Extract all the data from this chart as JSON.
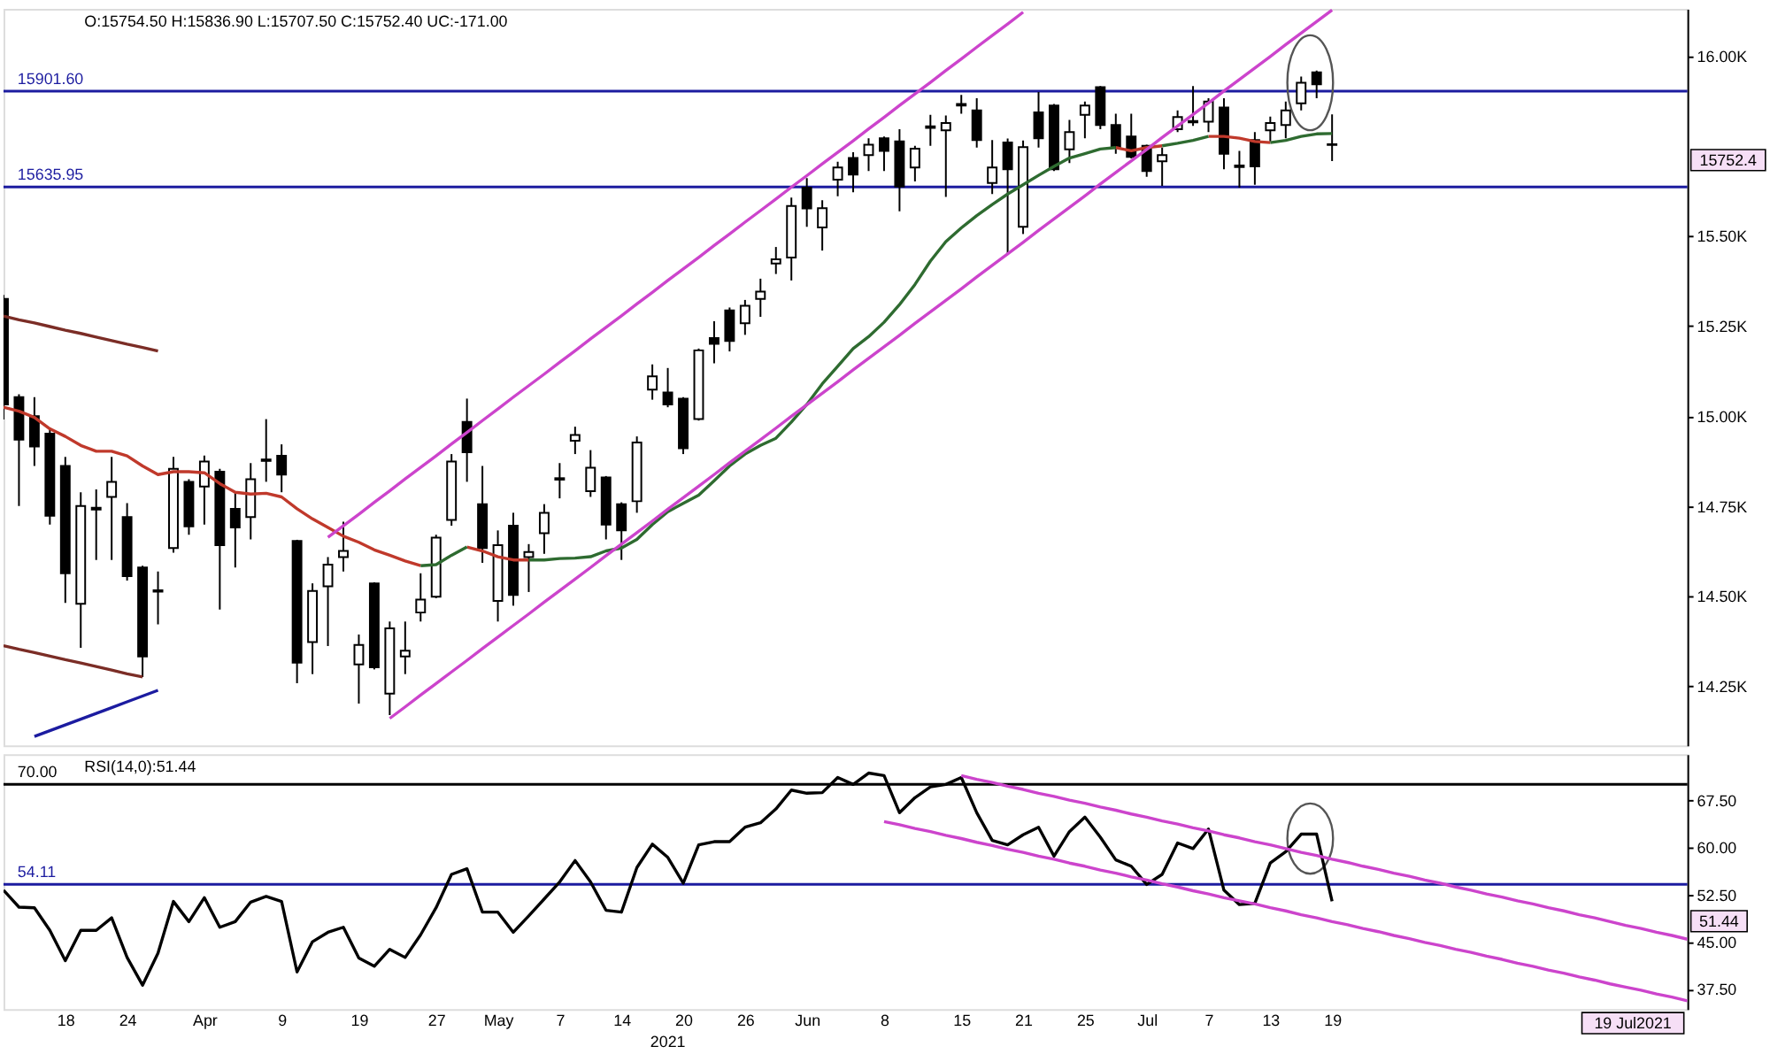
{
  "chart_data": [
    {
      "type": "candlestick",
      "title": "O:15754.50 H:15836.90 L:15707.50 C:15752.40 UC:-171.00",
      "categories": [
        null,
        null,
        null,
        null,
        "18",
        null,
        null,
        null,
        "24",
        null,
        null,
        null,
        null,
        "Apr",
        null,
        null,
        null,
        null,
        "9",
        null,
        null,
        null,
        null,
        "19",
        null,
        null,
        null,
        null,
        "27",
        null,
        null,
        null,
        "May",
        null,
        null,
        null,
        "7",
        null,
        null,
        null,
        "14",
        null,
        null,
        null,
        "20",
        null,
        null,
        null,
        "26",
        null,
        null,
        null,
        "Jun",
        null,
        null,
        null,
        null,
        "8",
        null,
        null,
        null,
        null,
        "15",
        null,
        null,
        null,
        "21",
        null,
        null,
        null,
        "25",
        null,
        null,
        null,
        "Jul",
        null,
        null,
        null,
        "7",
        null,
        null,
        null,
        "13",
        null,
        null,
        null,
        "19",
        null,
        null,
        null,
        null,
        null,
        null,
        null,
        null,
        null,
        null,
        null,
        null,
        null,
        null,
        null,
        null,
        null,
        null,
        null,
        null,
        null,
        null,
        null
      ],
      "ohlc": [
        [
          15325,
          15336,
          14990,
          15032
        ],
        [
          15052,
          15060,
          14750,
          14934
        ],
        [
          14999,
          15052,
          14861,
          14915
        ],
        [
          14951,
          14967,
          14698,
          14723
        ],
        [
          14861,
          14886,
          14481,
          14563
        ],
        [
          14478,
          14788,
          14356,
          14750
        ],
        [
          14740,
          14796,
          14600,
          14745
        ],
        [
          14775,
          14886,
          14600,
          14817
        ],
        [
          14719,
          14758,
          14543,
          14555
        ],
        [
          14579,
          14584,
          14275,
          14332
        ],
        [
          14516,
          14568,
          14421,
          14512
        ],
        [
          14633,
          14886,
          14620,
          14853
        ],
        [
          14817,
          14824,
          14670,
          14693
        ],
        [
          14804,
          14890,
          14698,
          14873
        ],
        [
          14845,
          14853,
          14462,
          14641
        ],
        [
          14742,
          14788,
          14579,
          14690
        ],
        [
          14719,
          14869,
          14657,
          14824
        ],
        [
          14875,
          14991,
          14817,
          14879
        ],
        [
          14889,
          14921,
          14788,
          14837
        ],
        [
          14653,
          14656,
          14258,
          14315
        ],
        [
          14372,
          14535,
          14283,
          14514
        ],
        [
          14527,
          14608,
          14361,
          14587
        ],
        [
          14608,
          14706,
          14568,
          14625
        ],
        [
          14310,
          14393,
          14201,
          14364
        ],
        [
          14535,
          14538,
          14296,
          14302
        ],
        [
          14229,
          14429,
          14169,
          14410
        ],
        [
          14332,
          14429,
          14283,
          14348
        ],
        [
          14454,
          14563,
          14429,
          14490
        ],
        [
          14498,
          14670,
          14494,
          14662
        ],
        [
          14711,
          14894,
          14695,
          14873
        ],
        [
          14983,
          15048,
          14817,
          14899
        ],
        [
          14755,
          14861,
          14592,
          14633
        ],
        [
          14486,
          14682,
          14429,
          14641
        ],
        [
          14695,
          14731,
          14473,
          14503
        ],
        [
          14608,
          14644,
          14511,
          14622
        ],
        [
          14674,
          14755,
          14617,
          14731
        ],
        [
          14823,
          14869,
          14771,
          14827
        ],
        [
          14931,
          14970,
          14894,
          14947
        ],
        [
          14791,
          14905,
          14775,
          14856
        ],
        [
          14829,
          14833,
          14657,
          14698
        ],
        [
          14755,
          14760,
          14600,
          14682
        ],
        [
          14763,
          14943,
          14731,
          14926
        ],
        [
          15073,
          15143,
          15045,
          15110
        ],
        [
          15065,
          15133,
          15024,
          15032
        ],
        [
          15048,
          15052,
          14894,
          14910
        ],
        [
          14991,
          15187,
          14987,
          15182
        ],
        [
          15216,
          15263,
          15146,
          15200
        ],
        [
          15293,
          15301,
          15179,
          15208
        ],
        [
          15257,
          15322,
          15225,
          15306
        ],
        [
          15325,
          15381,
          15275,
          15345
        ],
        [
          15423,
          15469,
          15394,
          15435
        ],
        [
          15440,
          15606,
          15376,
          15583
        ],
        [
          15634,
          15660,
          15525,
          15576
        ],
        [
          15523,
          15599,
          15459,
          15577
        ],
        [
          15656,
          15706,
          15610,
          15690
        ],
        [
          15716,
          15732,
          15621,
          15670
        ],
        [
          15724,
          15771,
          15680,
          15753
        ],
        [
          15771,
          15776,
          15680,
          15736
        ],
        [
          15762,
          15796,
          15568,
          15637
        ],
        [
          15690,
          15750,
          15651,
          15742
        ],
        [
          15800,
          15836,
          15750,
          15804
        ],
        [
          15793,
          15834,
          15608,
          15813
        ],
        [
          15862,
          15891,
          15839,
          15866
        ],
        [
          15848,
          15882,
          15745,
          15766
        ],
        [
          15647,
          15766,
          15616,
          15690
        ],
        [
          15759,
          15770,
          15451,
          15685
        ],
        [
          15525,
          15765,
          15505,
          15746
        ],
        [
          15843,
          15899,
          15745,
          15771
        ],
        [
          15862,
          15866,
          15680,
          15685
        ],
        [
          15740,
          15822,
          15702,
          15788
        ],
        [
          15836,
          15873,
          15771,
          15862
        ],
        [
          15913,
          15916,
          15796,
          15808
        ],
        [
          15808,
          15839,
          15728,
          15745
        ],
        [
          15776,
          15839,
          15715,
          15719
        ],
        [
          15750,
          15753,
          15664,
          15680
        ],
        [
          15707,
          15745,
          15639,
          15724
        ],
        [
          15796,
          15848,
          15788,
          15830
        ],
        [
          15815,
          15916,
          15805,
          15819
        ],
        [
          15817,
          15882,
          15788,
          15873
        ],
        [
          15856,
          15882,
          15685,
          15728
        ],
        [
          15691,
          15736,
          15634,
          15695
        ],
        [
          15766,
          15788,
          15642,
          15693
        ],
        [
          15793,
          15831,
          15762,
          15813
        ],
        [
          15808,
          15873,
          15771,
          15848
        ],
        [
          15868,
          15942,
          15848,
          15925
        ],
        [
          15954,
          15959,
          15882,
          15921
        ],
        [
          15754.5,
          15836.9,
          15707.5,
          15752.4
        ],
        null,
        null,
        null,
        null,
        null,
        null,
        null,
        null,
        null,
        null,
        null,
        null,
        null,
        null,
        null,
        null,
        null,
        null,
        null,
        null,
        null,
        null,
        null
      ],
      "color": "#000000",
      "series": [
        {
          "type": "line",
          "color": "#c0392b",
          "values": [
            15024,
            15013,
            14996,
            14964,
            14943,
            14918,
            14902,
            14902,
            14889,
            14861,
            14837,
            14845,
            14845,
            14842,
            14812,
            14788,
            14783,
            14785,
            14775,
            14742,
            14714,
            14690,
            14666,
            14649,
            14628,
            14613,
            14597,
            14584,
            null,
            null,
            14636,
            14625,
            14609,
            14600,
            14600,
            null,
            null,
            null,
            null,
            null,
            null,
            null,
            null,
            null,
            null,
            null,
            null,
            null,
            null,
            null,
            null,
            null,
            null,
            null,
            null,
            null,
            null,
            null,
            null,
            null,
            null,
            null,
            null,
            null,
            null,
            null,
            null,
            null,
            null,
            null,
            null,
            null,
            15745,
            15736,
            15745,
            15750,
            null,
            null,
            15776,
            15776,
            15771,
            15762,
            15759,
            null,
            null,
            null,
            null,
            null,
            null,
            null,
            null,
            null,
            null,
            null,
            null,
            null,
            null,
            null,
            null,
            null,
            null,
            null,
            null,
            null,
            null,
            null,
            null,
            null,
            null,
            null
          ]
        },
        {
          "type": "line",
          "color": "#2e6b30",
          "values": [
            null,
            null,
            null,
            null,
            null,
            null,
            null,
            null,
            null,
            null,
            null,
            null,
            null,
            null,
            null,
            null,
            null,
            null,
            null,
            null,
            null,
            null,
            null,
            null,
            null,
            null,
            null,
            14584,
            14587,
            14613,
            14636,
            null,
            null,
            null,
            14600,
            14600,
            14604,
            14605,
            14609,
            14625,
            14633,
            14657,
            14698,
            14734,
            14757,
            14780,
            14820,
            14861,
            14894,
            14918,
            14938,
            14983,
            15032,
            15089,
            15138,
            15187,
            15220,
            15260,
            15309,
            15365,
            15430,
            15484,
            15522,
            15556,
            15587,
            15616,
            15642,
            15668,
            15693,
            15716,
            15728,
            15741,
            15745,
            null,
            null,
            15750,
            15757,
            15765,
            15776,
            null,
            null,
            null,
            15759,
            15765,
            15776,
            15783,
            15784,
            null,
            null,
            null,
            null,
            null,
            null,
            null,
            null,
            null,
            null,
            null,
            null,
            null,
            null,
            null,
            null,
            null,
            null,
            null,
            null,
            null,
            null,
            null
          ]
        },
        {
          "type": "line",
          "color": "#cc44cc",
          "values": [
            null,
            null,
            null,
            null,
            null,
            null,
            null,
            null,
            null,
            null,
            null,
            null,
            null,
            null,
            null,
            null,
            null,
            null,
            null,
            null,
            null,
            14663,
            14695,
            14727,
            14760,
            14792,
            14825,
            14857,
            14889,
            14922,
            14954,
            14987,
            15019,
            15052,
            15084,
            15116,
            15149,
            15181,
            15214,
            15246,
            15278,
            15311,
            15343,
            15376,
            15408,
            15440,
            15473,
            15505,
            15538,
            15570,
            15602,
            15635,
            15667,
            15700,
            15732,
            15764,
            15797,
            15829,
            15862,
            15894,
            15926,
            15959,
            15991,
            16024,
            16056,
            16088,
            16121,
            null,
            null,
            null,
            null,
            null,
            null,
            null,
            null,
            null,
            null,
            null,
            null,
            null,
            null,
            null,
            null,
            null,
            null,
            null,
            null,
            null,
            null,
            null,
            null,
            null,
            null,
            null,
            null,
            null,
            null,
            null,
            null,
            null,
            null,
            null,
            null,
            null,
            null,
            null,
            null,
            null,
            null,
            null
          ]
        },
        {
          "type": "line",
          "color": "#cc44cc",
          "values": [
            null,
            null,
            null,
            null,
            null,
            null,
            null,
            null,
            null,
            null,
            null,
            null,
            null,
            null,
            null,
            null,
            null,
            null,
            null,
            null,
            null,
            null,
            null,
            null,
            null,
            14160,
            14192,
            14225,
            14257,
            14289,
            14321,
            14354,
            14386,
            14418,
            14450,
            14483,
            14515,
            14547,
            14579,
            14612,
            14644,
            14676,
            14708,
            14741,
            14773,
            14805,
            14837,
            14870,
            14902,
            14934,
            14966,
            14999,
            15031,
            15063,
            15095,
            15128,
            15160,
            15192,
            15224,
            15257,
            15289,
            15321,
            15353,
            15386,
            15418,
            15450,
            15482,
            15515,
            15547,
            15579,
            15611,
            15644,
            15676,
            15708,
            15740,
            15773,
            15805,
            15837,
            15869,
            15902,
            15934,
            15966,
            15998,
            16031,
            16063,
            16095,
            16127,
            null,
            null,
            null,
            null,
            null,
            null,
            null,
            null,
            null,
            null,
            null,
            null,
            null,
            null,
            null,
            null,
            null,
            null,
            null,
            null,
            null,
            null,
            null
          ]
        },
        {
          "type": "line",
          "color": "#7b2d26",
          "values": [
            15277,
            15267,
            15258,
            15248,
            15238,
            15229,
            15219,
            15209,
            15199,
            15190,
            15180,
            null,
            null,
            null,
            null,
            null,
            null,
            null,
            null,
            null,
            null,
            null,
            null,
            null,
            null,
            null,
            null,
            null,
            null,
            null,
            null,
            null,
            null,
            null,
            null,
            null,
            null,
            null,
            null,
            null,
            null,
            null,
            null,
            null,
            null,
            null,
            null,
            null,
            null,
            null,
            null,
            null,
            null,
            null,
            null,
            null,
            null,
            null,
            null,
            null,
            null,
            null,
            null,
            null,
            null,
            null,
            null,
            null,
            null,
            null,
            null,
            null,
            null,
            null,
            null,
            null,
            null,
            null,
            null,
            null,
            null,
            null,
            null,
            null,
            null,
            null,
            null,
            null,
            null,
            null,
            null,
            null,
            null,
            null,
            null,
            null,
            null,
            null,
            null,
            null,
            null,
            null,
            null,
            null,
            null,
            null,
            null,
            null,
            null,
            null
          ]
        },
        {
          "type": "line",
          "color": "#7b2d26",
          "values": [
            14362,
            14352,
            14343,
            14333,
            14323,
            14314,
            14304,
            14294,
            14284,
            14275,
            null,
            null,
            null,
            null,
            null,
            null,
            null,
            null,
            null,
            null,
            null,
            null,
            null,
            null,
            null,
            null,
            null,
            null,
            null,
            null,
            null,
            null,
            null,
            null,
            null,
            null,
            null,
            null,
            null,
            null,
            null,
            null,
            null,
            null,
            null,
            null,
            null,
            null,
            null,
            null,
            null,
            null,
            null,
            null,
            null,
            null,
            null,
            null,
            null,
            null,
            null,
            null,
            null,
            null,
            null,
            null,
            null,
            null,
            null,
            null,
            null,
            null,
            null,
            null,
            null,
            null,
            null,
            null,
            null,
            null,
            null,
            null,
            null,
            null,
            null,
            null,
            null,
            null,
            null,
            null,
            null,
            null,
            null,
            null,
            null,
            null,
            null,
            null,
            null,
            null,
            null,
            null,
            null,
            null,
            null,
            null,
            null,
            null,
            null,
            null
          ]
        },
        {
          "type": "line",
          "color": "#1c1ca0",
          "values": [
            null,
            null,
            14110,
            14126,
            14142,
            14158,
            14174,
            14190,
            14206,
            14222,
            14238,
            null,
            null,
            null,
            null,
            null,
            null,
            null,
            null,
            null,
            null,
            null,
            null,
            null,
            null,
            null,
            null,
            null,
            null,
            null,
            null,
            null,
            null,
            null,
            null,
            null,
            null,
            null,
            null,
            null,
            null,
            null,
            null,
            null,
            null,
            null,
            null,
            null,
            null,
            null,
            null,
            null,
            null,
            null,
            null,
            null,
            null,
            null,
            null,
            null,
            null,
            null,
            null,
            null,
            null,
            null,
            null,
            null,
            null,
            null,
            null,
            null,
            null,
            null,
            null,
            null,
            null,
            null,
            null,
            null,
            null,
            null,
            null,
            null,
            null,
            null,
            null,
            null,
            null,
            null,
            null,
            null,
            null,
            null,
            null,
            null,
            null,
            null,
            null,
            null,
            null,
            null,
            null,
            null,
            null,
            null,
            null,
            null,
            null,
            null
          ]
        }
      ],
      "ylim": [
        14085,
        16130
      ],
      "yticks": [
        {
          "value": 14250,
          "label": "14.25K"
        },
        {
          "value": 14500,
          "label": "14.50K"
        },
        {
          "value": 14750,
          "label": "14.75K"
        },
        {
          "value": 15000,
          "label": "15.00K"
        },
        {
          "value": 15250,
          "label": "15.25K"
        },
        {
          "value": 15500,
          "label": "15.50K"
        },
        {
          "value": 16000,
          "label": "16.00K"
        }
      ],
      "ref_lines": [
        {
          "axis": "y",
          "value": 15901.6,
          "label": "15901.60",
          "color": "#1c1ca0"
        },
        {
          "axis": "y",
          "value": 15635.95,
          "label": "15635.95",
          "color": "#1c1ca0"
        }
      ],
      "annotations": [
        "15752.4"
      ],
      "tick_labels": "y"
    },
    {
      "type": "line",
      "title": "RSI(14,0):51.44",
      "categories": [
        null,
        null,
        null,
        null,
        "18",
        null,
        null,
        null,
        "24",
        null,
        null,
        null,
        null,
        "Apr",
        null,
        null,
        null,
        null,
        "9",
        null,
        null,
        null,
        null,
        "19",
        null,
        null,
        null,
        null,
        "27",
        null,
        null,
        null,
        "May",
        null,
        null,
        null,
        "7",
        null,
        null,
        null,
        "14",
        null,
        null,
        null,
        "20",
        null,
        null,
        null,
        "26",
        null,
        null,
        null,
        "Jun",
        null,
        null,
        null,
        null,
        "8",
        null,
        null,
        null,
        null,
        "15",
        null,
        null,
        null,
        "21",
        null,
        null,
        null,
        "25",
        null,
        null,
        null,
        "Jul",
        null,
        null,
        null,
        "7",
        null,
        null,
        null,
        "13",
        null,
        null,
        null,
        "19",
        null,
        null,
        null,
        null,
        null,
        null,
        null,
        null,
        null,
        null,
        null,
        null,
        null,
        null,
        null,
        null,
        null,
        null,
        null,
        null,
        null,
        null,
        null
      ],
      "series": [
        {
          "color": "#000000",
          "values": [
            53.2,
            50.5,
            50.4,
            46.8,
            42.0,
            46.8,
            46.8,
            48.8,
            42.5,
            38.1,
            43.2,
            51.4,
            48.2,
            52.0,
            47.3,
            48.2,
            51.3,
            52.2,
            51.4,
            40.2,
            45.0,
            46.5,
            47.3,
            42.4,
            41.1,
            43.8,
            42.5,
            46.1,
            50.4,
            55.7,
            56.6,
            49.7,
            49.7,
            46.5,
            49.1,
            51.8,
            54.5,
            57.9,
            54.5,
            50.0,
            49.7,
            56.8,
            60.5,
            58.4,
            54.3,
            60.4,
            60.9,
            60.9,
            63.2,
            63.9,
            66.1,
            69.1,
            68.6,
            68.7,
            71.1,
            70.0,
            71.8,
            71.4,
            65.5,
            67.9,
            69.6,
            70.0,
            71.1,
            65.5,
            61.1,
            60.4,
            62.0,
            63.2,
            58.6,
            62.5,
            64.8,
            61.6,
            58.0,
            57.0,
            54.1,
            55.7,
            60.7,
            59.8,
            62.9,
            53.2,
            50.9,
            51.1,
            57.5,
            59.3,
            62.1,
            62.1,
            51.44,
            null,
            null,
            null,
            null,
            null,
            null,
            null,
            null,
            null,
            null,
            null,
            null,
            null,
            null,
            null,
            null,
            null,
            null,
            null,
            null,
            null,
            null,
            null
          ]
        },
        {
          "color": "#cc44cc",
          "values": [
            null,
            null,
            null,
            null,
            null,
            null,
            null,
            null,
            null,
            null,
            null,
            null,
            null,
            null,
            null,
            null,
            null,
            null,
            null,
            null,
            null,
            null,
            null,
            null,
            null,
            null,
            null,
            null,
            null,
            null,
            null,
            null,
            null,
            null,
            null,
            null,
            null,
            null,
            null,
            null,
            null,
            null,
            null,
            null,
            null,
            null,
            null,
            null,
            null,
            null,
            null,
            null,
            null,
            null,
            null,
            null,
            null,
            null,
            null,
            null,
            null,
            null,
            71.4,
            70.8,
            70.3,
            69.7,
            69.2,
            68.6,
            68.1,
            67.5,
            67.0,
            66.4,
            65.9,
            65.3,
            64.8,
            64.2,
            63.7,
            63.1,
            62.6,
            62.0,
            61.5,
            60.9,
            60.4,
            59.8,
            59.2,
            58.7,
            58.1,
            57.6,
            57.0,
            56.5,
            55.9,
            55.4,
            54.8,
            54.3,
            53.7,
            53.2,
            52.6,
            52.1,
            51.5,
            51.0,
            50.4,
            49.9,
            49.3,
            48.8,
            48.2,
            47.6,
            47.1,
            46.5,
            46.0,
            45.4
          ]
        },
        {
          "color": "#cc44cc",
          "values": [
            null,
            null,
            null,
            null,
            null,
            null,
            null,
            null,
            null,
            null,
            null,
            null,
            null,
            null,
            null,
            null,
            null,
            null,
            null,
            null,
            null,
            null,
            null,
            null,
            null,
            null,
            null,
            null,
            null,
            null,
            null,
            null,
            null,
            null,
            null,
            null,
            null,
            null,
            null,
            null,
            null,
            null,
            null,
            null,
            null,
            null,
            null,
            null,
            null,
            null,
            null,
            null,
            null,
            null,
            null,
            null,
            null,
            64.1,
            63.6,
            63.0,
            62.5,
            61.9,
            61.4,
            60.8,
            60.3,
            59.7,
            59.2,
            58.6,
            58.1,
            57.5,
            57.0,
            56.4,
            55.9,
            55.3,
            54.8,
            54.2,
            53.7,
            53.1,
            52.6,
            52.0,
            51.5,
            51.0,
            50.4,
            49.9,
            49.3,
            48.8,
            48.2,
            47.7,
            47.1,
            46.6,
            46.0,
            45.5,
            44.9,
            44.4,
            43.8,
            43.3,
            42.7,
            42.2,
            41.6,
            41.1,
            40.5,
            40.0,
            39.4,
            38.9,
            38.3,
            37.8,
            37.3,
            36.7,
            36.2,
            35.6
          ]
        }
      ],
      "ylim": [
        34.3,
        74.8
      ],
      "yticks": [
        {
          "value": 37.5,
          "label": "37.50"
        },
        {
          "value": 45,
          "label": "45.00"
        },
        {
          "value": 52.5,
          "label": "52.50"
        },
        {
          "value": 60,
          "label": "60.00"
        },
        {
          "value": 67.5,
          "label": "67.50"
        }
      ],
      "ref_lines": [
        {
          "axis": "y",
          "value": 70,
          "label": "70.00",
          "color": "#000000"
        },
        {
          "axis": "y",
          "value": 54.11,
          "label": "54.11",
          "color": "#1c1ca0"
        }
      ],
      "xlabel": "2021",
      "annotations": [
        "51.44",
        "19 Jul2021"
      ]
    }
  ]
}
